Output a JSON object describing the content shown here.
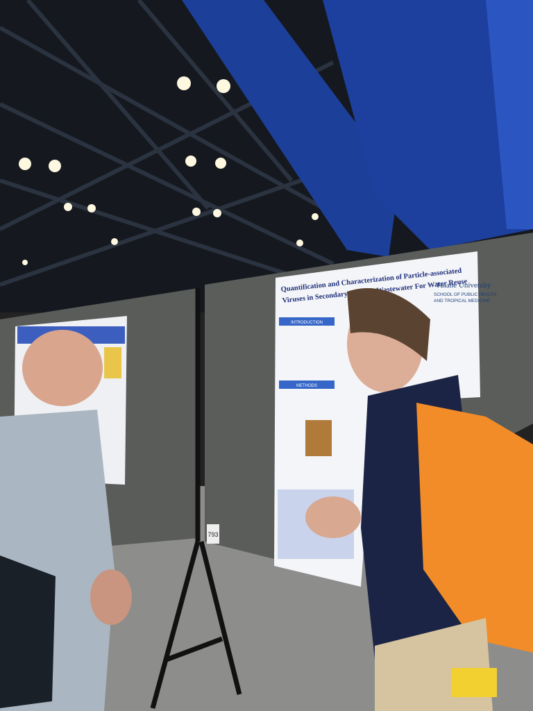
{
  "poster": {
    "title_lines": [
      "Quantification and Characterization of Particle-associated",
      "Viruses in Secondary Effluent Wastewater For Water Reuse"
    ],
    "institution": "Tulane University",
    "school_lines": [
      "SCHOOL OF PUBLIC HEALTH",
      "AND TROPICAL MEDICINE"
    ],
    "sections": [
      "INTRODUCTION",
      "METHODS"
    ]
  },
  "board_number": "793"
}
